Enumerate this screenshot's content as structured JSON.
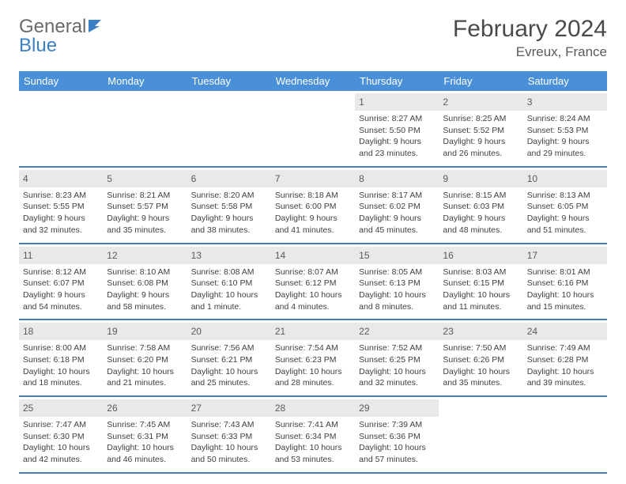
{
  "logo": {
    "general": "General",
    "blue": "Blue"
  },
  "title": "February 2024",
  "location": "Evreux, France",
  "weekdays": [
    "Sunday",
    "Monday",
    "Tuesday",
    "Wednesday",
    "Thursday",
    "Friday",
    "Saturday"
  ],
  "colors": {
    "header_bg": "#4a90d9",
    "header_text": "#ffffff",
    "daynum_bg": "#e9e9e9",
    "border": "#4a7fb5",
    "title_color": "#4a4a4a",
    "text_color": "#404040",
    "logo_blue": "#3b7fc4",
    "background": "#ffffff"
  },
  "fonts": {
    "title_size": 30,
    "location_size": 17,
    "weekday_size": 13,
    "daynum_size": 12,
    "body_size": 10.5
  },
  "weeks": [
    [
      null,
      null,
      null,
      null,
      {
        "num": "1",
        "sunrise": "Sunrise: 8:27 AM",
        "sunset": "Sunset: 5:50 PM",
        "daylight1": "Daylight: 9 hours",
        "daylight2": "and 23 minutes."
      },
      {
        "num": "2",
        "sunrise": "Sunrise: 8:25 AM",
        "sunset": "Sunset: 5:52 PM",
        "daylight1": "Daylight: 9 hours",
        "daylight2": "and 26 minutes."
      },
      {
        "num": "3",
        "sunrise": "Sunrise: 8:24 AM",
        "sunset": "Sunset: 5:53 PM",
        "daylight1": "Daylight: 9 hours",
        "daylight2": "and 29 minutes."
      }
    ],
    [
      {
        "num": "4",
        "sunrise": "Sunrise: 8:23 AM",
        "sunset": "Sunset: 5:55 PM",
        "daylight1": "Daylight: 9 hours",
        "daylight2": "and 32 minutes."
      },
      {
        "num": "5",
        "sunrise": "Sunrise: 8:21 AM",
        "sunset": "Sunset: 5:57 PM",
        "daylight1": "Daylight: 9 hours",
        "daylight2": "and 35 minutes."
      },
      {
        "num": "6",
        "sunrise": "Sunrise: 8:20 AM",
        "sunset": "Sunset: 5:58 PM",
        "daylight1": "Daylight: 9 hours",
        "daylight2": "and 38 minutes."
      },
      {
        "num": "7",
        "sunrise": "Sunrise: 8:18 AM",
        "sunset": "Sunset: 6:00 PM",
        "daylight1": "Daylight: 9 hours",
        "daylight2": "and 41 minutes."
      },
      {
        "num": "8",
        "sunrise": "Sunrise: 8:17 AM",
        "sunset": "Sunset: 6:02 PM",
        "daylight1": "Daylight: 9 hours",
        "daylight2": "and 45 minutes."
      },
      {
        "num": "9",
        "sunrise": "Sunrise: 8:15 AM",
        "sunset": "Sunset: 6:03 PM",
        "daylight1": "Daylight: 9 hours",
        "daylight2": "and 48 minutes."
      },
      {
        "num": "10",
        "sunrise": "Sunrise: 8:13 AM",
        "sunset": "Sunset: 6:05 PM",
        "daylight1": "Daylight: 9 hours",
        "daylight2": "and 51 minutes."
      }
    ],
    [
      {
        "num": "11",
        "sunrise": "Sunrise: 8:12 AM",
        "sunset": "Sunset: 6:07 PM",
        "daylight1": "Daylight: 9 hours",
        "daylight2": "and 54 minutes."
      },
      {
        "num": "12",
        "sunrise": "Sunrise: 8:10 AM",
        "sunset": "Sunset: 6:08 PM",
        "daylight1": "Daylight: 9 hours",
        "daylight2": "and 58 minutes."
      },
      {
        "num": "13",
        "sunrise": "Sunrise: 8:08 AM",
        "sunset": "Sunset: 6:10 PM",
        "daylight1": "Daylight: 10 hours",
        "daylight2": "and 1 minute."
      },
      {
        "num": "14",
        "sunrise": "Sunrise: 8:07 AM",
        "sunset": "Sunset: 6:12 PM",
        "daylight1": "Daylight: 10 hours",
        "daylight2": "and 4 minutes."
      },
      {
        "num": "15",
        "sunrise": "Sunrise: 8:05 AM",
        "sunset": "Sunset: 6:13 PM",
        "daylight1": "Daylight: 10 hours",
        "daylight2": "and 8 minutes."
      },
      {
        "num": "16",
        "sunrise": "Sunrise: 8:03 AM",
        "sunset": "Sunset: 6:15 PM",
        "daylight1": "Daylight: 10 hours",
        "daylight2": "and 11 minutes."
      },
      {
        "num": "17",
        "sunrise": "Sunrise: 8:01 AM",
        "sunset": "Sunset: 6:16 PM",
        "daylight1": "Daylight: 10 hours",
        "daylight2": "and 15 minutes."
      }
    ],
    [
      {
        "num": "18",
        "sunrise": "Sunrise: 8:00 AM",
        "sunset": "Sunset: 6:18 PM",
        "daylight1": "Daylight: 10 hours",
        "daylight2": "and 18 minutes."
      },
      {
        "num": "19",
        "sunrise": "Sunrise: 7:58 AM",
        "sunset": "Sunset: 6:20 PM",
        "daylight1": "Daylight: 10 hours",
        "daylight2": "and 21 minutes."
      },
      {
        "num": "20",
        "sunrise": "Sunrise: 7:56 AM",
        "sunset": "Sunset: 6:21 PM",
        "daylight1": "Daylight: 10 hours",
        "daylight2": "and 25 minutes."
      },
      {
        "num": "21",
        "sunrise": "Sunrise: 7:54 AM",
        "sunset": "Sunset: 6:23 PM",
        "daylight1": "Daylight: 10 hours",
        "daylight2": "and 28 minutes."
      },
      {
        "num": "22",
        "sunrise": "Sunrise: 7:52 AM",
        "sunset": "Sunset: 6:25 PM",
        "daylight1": "Daylight: 10 hours",
        "daylight2": "and 32 minutes."
      },
      {
        "num": "23",
        "sunrise": "Sunrise: 7:50 AM",
        "sunset": "Sunset: 6:26 PM",
        "daylight1": "Daylight: 10 hours",
        "daylight2": "and 35 minutes."
      },
      {
        "num": "24",
        "sunrise": "Sunrise: 7:49 AM",
        "sunset": "Sunset: 6:28 PM",
        "daylight1": "Daylight: 10 hours",
        "daylight2": "and 39 minutes."
      }
    ],
    [
      {
        "num": "25",
        "sunrise": "Sunrise: 7:47 AM",
        "sunset": "Sunset: 6:30 PM",
        "daylight1": "Daylight: 10 hours",
        "daylight2": "and 42 minutes."
      },
      {
        "num": "26",
        "sunrise": "Sunrise: 7:45 AM",
        "sunset": "Sunset: 6:31 PM",
        "daylight1": "Daylight: 10 hours",
        "daylight2": "and 46 minutes."
      },
      {
        "num": "27",
        "sunrise": "Sunrise: 7:43 AM",
        "sunset": "Sunset: 6:33 PM",
        "daylight1": "Daylight: 10 hours",
        "daylight2": "and 50 minutes."
      },
      {
        "num": "28",
        "sunrise": "Sunrise: 7:41 AM",
        "sunset": "Sunset: 6:34 PM",
        "daylight1": "Daylight: 10 hours",
        "daylight2": "and 53 minutes."
      },
      {
        "num": "29",
        "sunrise": "Sunrise: 7:39 AM",
        "sunset": "Sunset: 6:36 PM",
        "daylight1": "Daylight: 10 hours",
        "daylight2": "and 57 minutes."
      },
      null,
      null
    ]
  ]
}
